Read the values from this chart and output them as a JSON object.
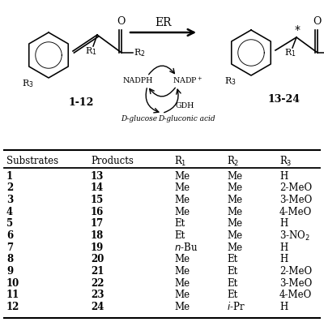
{
  "background_color": "#ffffff",
  "table_rows": [
    [
      "1",
      "13",
      "Me",
      "Me",
      "H"
    ],
    [
      "2",
      "14",
      "Me",
      "Me",
      "2-MeO"
    ],
    [
      "3",
      "15",
      "Me",
      "Me",
      "3-MeO"
    ],
    [
      "4",
      "16",
      "Me",
      "Me",
      "4-MeO"
    ],
    [
      "5",
      "17",
      "Et",
      "Me",
      "H"
    ],
    [
      "6",
      "18",
      "Et",
      "Me",
      "3-NO2"
    ],
    [
      "7",
      "19",
      "n-Bu",
      "Me",
      "H"
    ],
    [
      "8",
      "20",
      "Me",
      "Et",
      "H"
    ],
    [
      "9",
      "21",
      "Me",
      "Et",
      "2-MeO"
    ],
    [
      "10",
      "22",
      "Me",
      "Et",
      "3-MeO"
    ],
    [
      "11",
      "23",
      "Me",
      "Et",
      "4-MeO"
    ],
    [
      "12",
      "24",
      "Me",
      "i-Pr",
      "H"
    ]
  ],
  "bold_cols": [
    0,
    1
  ],
  "fig_width": 4.0,
  "fig_height": 3.97,
  "dpi": 100
}
